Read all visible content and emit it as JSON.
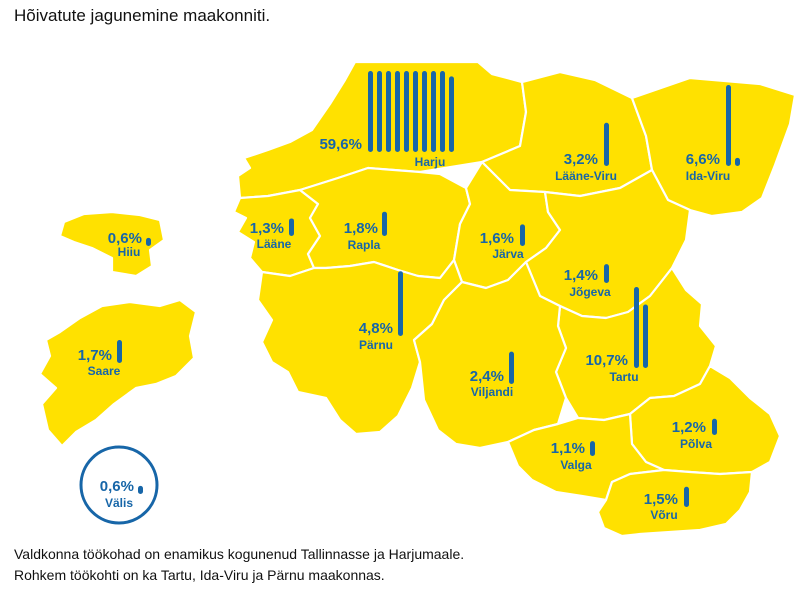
{
  "title": "Hõivatute jagunemine maakonniti.",
  "colors": {
    "land": "#FFE100",
    "bar": "#1766A8",
    "text": "#1766A8",
    "border": "#ffffff"
  },
  "counties": [
    {
      "id": "harju",
      "name": "Harju",
      "value": 59.6,
      "label": "59,6%"
    },
    {
      "id": "laane-viru",
      "name": "Lääne-Viru",
      "value": 3.2,
      "label": "3,2%"
    },
    {
      "id": "ida-viru",
      "name": "Ida-Viru",
      "value": 6.6,
      "label": "6,6%"
    },
    {
      "id": "hiiu",
      "name": "Hiiu",
      "value": 0.6,
      "label": "0,6%"
    },
    {
      "id": "laane",
      "name": "Lääne",
      "value": 1.3,
      "label": "1,3%"
    },
    {
      "id": "rapla",
      "name": "Rapla",
      "value": 1.8,
      "label": "1,8%"
    },
    {
      "id": "jarva",
      "name": "Järva",
      "value": 1.6,
      "label": "1,6%"
    },
    {
      "id": "jogeva",
      "name": "Jõgeva",
      "value": 1.4,
      "label": "1,4%"
    },
    {
      "id": "parnu",
      "name": "Pärnu",
      "value": 4.8,
      "label": "4,8%"
    },
    {
      "id": "saare",
      "name": "Saare",
      "value": 1.7,
      "label": "1,7%"
    },
    {
      "id": "tartu",
      "name": "Tartu",
      "value": 10.7,
      "label": "10,7%"
    },
    {
      "id": "viljandi",
      "name": "Viljandi",
      "value": 2.4,
      "label": "2,4%"
    },
    {
      "id": "polva",
      "name": "Põlva",
      "value": 1.2,
      "label": "1,2%"
    },
    {
      "id": "valga",
      "name": "Valga",
      "value": 1.1,
      "label": "1,1%"
    },
    {
      "id": "voru",
      "name": "Võru",
      "value": 1.5,
      "label": "1,5%"
    }
  ],
  "abroad": {
    "name": "Välis",
    "value": 0.6,
    "label": "0,6%"
  },
  "note": [
    "Valdkonna töökohad on enamikus kogunenud Tallinnasse ja Harjumaale.",
    "Rohkem töökohti on ka Tartu, Ida-Viru ja Pärnu maakonnas."
  ]
}
